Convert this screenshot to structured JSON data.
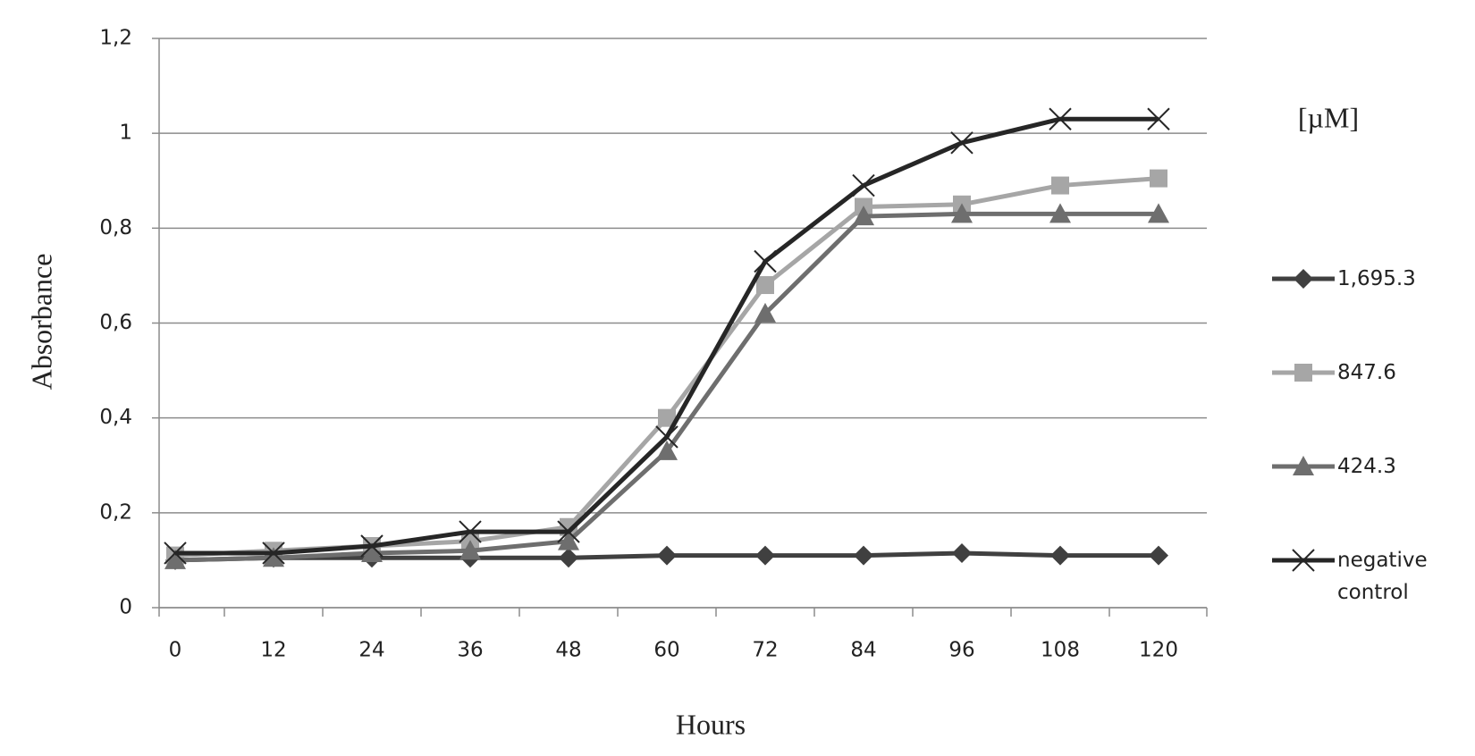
{
  "chart_data": {
    "type": "line",
    "x_label": "Hours",
    "y_label": "Absorbance",
    "legend_title": "[µM]",
    "legend": "right",
    "grid": true,
    "categories": [
      "0",
      "12",
      "24",
      "36",
      "48",
      "60",
      "72",
      "84",
      "96",
      "108",
      "120"
    ],
    "ylim": [
      0,
      1.2
    ],
    "yticks": [
      0,
      {
        "value": 0.2,
        "label": "0,2"
      },
      {
        "value": 0.4,
        "label": "0,4"
      },
      {
        "value": 0.6,
        "label": "0,6"
      },
      {
        "value": 0.8,
        "label": "0,8"
      },
      1,
      {
        "value": 1.2,
        "label": "1,2"
      }
    ],
    "series": [
      {
        "name": "1,695.3",
        "color": "#404040",
        "marker": "diamond",
        "values": [
          0.1,
          0.105,
          0.105,
          0.105,
          0.105,
          0.11,
          0.11,
          0.11,
          0.115,
          0.11,
          0.11
        ]
      },
      {
        "name": "847.6",
        "color": "#a6a6a6",
        "marker": "square",
        "values": [
          0.11,
          0.12,
          0.13,
          0.14,
          0.17,
          0.4,
          0.68,
          0.845,
          0.85,
          0.89,
          0.905
        ]
      },
      {
        "name": "424.3",
        "color": "#6e6e6e",
        "marker": "triangle",
        "values": [
          0.1,
          0.105,
          0.115,
          0.12,
          0.14,
          0.33,
          0.62,
          0.825,
          0.83,
          0.83,
          0.83
        ]
      },
      {
        "name": "negative control",
        "color": "#262626",
        "marker": "x",
        "values": [
          0.115,
          0.115,
          0.13,
          0.16,
          0.16,
          0.36,
          0.73,
          0.89,
          0.98,
          1.03,
          1.03
        ]
      }
    ]
  }
}
